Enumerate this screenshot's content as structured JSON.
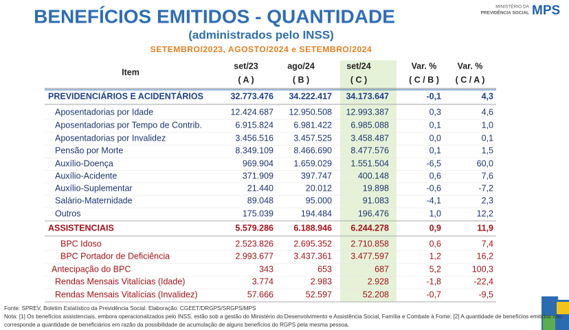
{
  "header": {
    "title": "BENEFÍCIOS EMITIDOS - QUANTIDADE",
    "subtitle": "(administrados pelo INSS)",
    "period": "SETEMBRO/2023, AGOSTO/2024 e SETEMBRO/2024"
  },
  "logo": {
    "line1": "MINISTÉRIO DA",
    "line2": "PREVIDÊNCIA SOCIAL",
    "acronym": "MPS"
  },
  "table": {
    "columns": [
      [
        "Item"
      ],
      [
        "set/23",
        "( A )"
      ],
      [
        "ago/24",
        "( B )"
      ],
      [
        "set/24",
        "( C )"
      ],
      [
        "Var. %",
        "( C / B )"
      ],
      [
        "Var. %",
        "( C / A )"
      ]
    ],
    "rows": [
      [
        "PREVIDENCIÁRIOS E ACIDENTÁRIOS",
        "32.773.476",
        "34.222.417",
        "34.173.647",
        "-0,1",
        "4,3"
      ],
      [
        "Aposentadorias por Idade",
        "12.424.687",
        "12.950.508",
        "12.993.387",
        "0,3",
        "4,6"
      ],
      [
        "Aposentadorias por Tempo de Contrib.",
        "6.915.824",
        "6.981.422",
        "6.985.088",
        "0,1",
        "1,0"
      ],
      [
        "Aposentadorias por Invalidez",
        "3.456.516",
        "3.457.525",
        "3.458.487",
        "0,0",
        "0,1"
      ],
      [
        "Pensão por Morte",
        "8.349.109",
        "8.466.690",
        "8.477.576",
        "0,1",
        "1,5"
      ],
      [
        "Auxílio-Doença",
        "969.904",
        "1.659.029",
        "1.551.504",
        "-6,5",
        "60,0"
      ],
      [
        "Auxílio-Acidente",
        "371.909",
        "397.747",
        "400.148",
        "0,6",
        "7,6"
      ],
      [
        "Auxílio-Suplementar",
        "21.440",
        "20.012",
        "19.898",
        "-0,6",
        "-7,2"
      ],
      [
        "Salário-Maternidade",
        "89.048",
        "95.000",
        "91.083",
        "-4,1",
        "2,3"
      ],
      [
        "Outros",
        "175.039",
        "194.484",
        "196.476",
        "1,0",
        "12,2"
      ],
      [
        "ASSISTENCIAIS",
        "5.579.286",
        "6.188.946",
        "6.244.278",
        "0,9",
        "11,9"
      ],
      [
        "BPC Idoso",
        "2.523.826",
        "2.695.352",
        "2.710.858",
        "0,6",
        "7,4"
      ],
      [
        "BPC Portador de Deficiência",
        "2.993.677",
        "3.437.361",
        "3.477.597",
        "1,2",
        "16,2"
      ],
      [
        "Antecipação do BPC",
        "343",
        "653",
        "687",
        "5,2",
        "100,3"
      ],
      [
        "Rendas Mensais Vitalícias (Idade)",
        "3.774",
        "2.983",
        "2.928",
        "-1,8",
        "-22,4"
      ],
      [
        "Rendas Mensais Vitalícias (Invalidez)",
        "57.666",
        "52.597",
        "52.208",
        "-0,7",
        "-9,5"
      ]
    ]
  },
  "footer": {
    "source": "Fonte: SPREV, Boletim Estatístico da Previdência Social. Elaboração: CGEET/DRGPS/SRGPS/MPS",
    "note": "Nota: [1] Os benefícios assistenciais, embora operacionalizados pelo INSS, estão sob a gestão do Ministério do Desenvolvimento e Assistência Social, Família e Combate à Fome; [2] A quantidade de benefícios emitidos não corresponde a quantidade de beneficiários em razão da possibilidade de acumulação de alguns benefícios do RGPS pela mesma pessoa."
  }
}
